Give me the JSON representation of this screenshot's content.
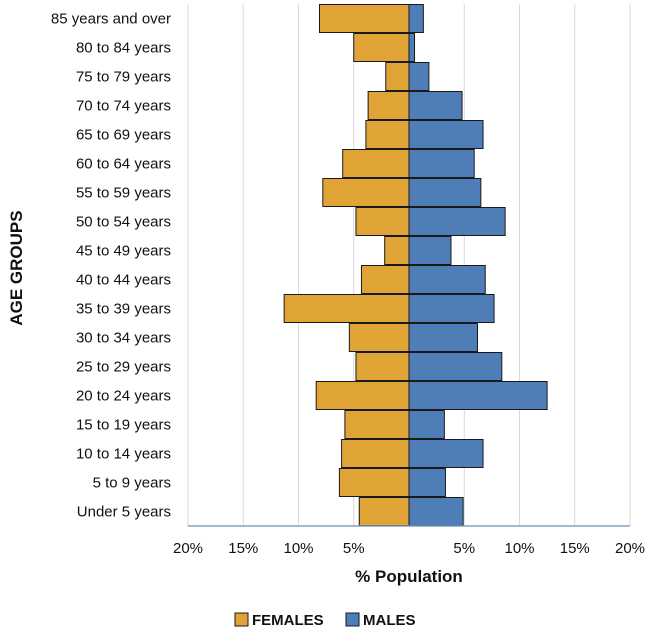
{
  "chart_data": {
    "type": "bar",
    "orientation": "horizontal-diverging",
    "title": "",
    "xlabel": "% Population",
    "ylabel": "AGE GROUPS",
    "categories": [
      "85 years and over",
      "80 to 84 years",
      "75 to 79 years",
      "70 to 74 years",
      "65 to 69 years",
      "60 to 64 years",
      "55 to 59 years",
      "50 to 54 years",
      "45 to 49 years",
      "40 to 44 years",
      "35 to 39 years",
      "30 to 34 years",
      "25 to 29 years",
      "20 to 24 years",
      "15 to 19 years",
      "10 to 14 years",
      "5 to 9 years",
      "Under 5 years"
    ],
    "series": [
      {
        "name": "FEMALES",
        "side": "left",
        "color": "#E0A335",
        "values": [
          8.1,
          5.0,
          2.1,
          3.7,
          3.9,
          6.0,
          7.8,
          4.8,
          2.2,
          4.3,
          11.3,
          5.4,
          4.8,
          8.4,
          5.8,
          6.1,
          6.3,
          4.5
        ]
      },
      {
        "name": "MALES",
        "side": "right",
        "color": "#4F7DB8",
        "values": [
          1.3,
          0.5,
          1.8,
          4.8,
          6.7,
          5.9,
          6.5,
          8.7,
          3.8,
          6.9,
          7.7,
          6.2,
          8.4,
          12.5,
          3.2,
          6.7,
          3.3,
          4.9
        ]
      }
    ],
    "xlim": [
      -20,
      20
    ],
    "xticks": [
      "20%",
      "15%",
      "10%",
      "5%",
      "5%",
      "10%",
      "15%",
      "20%"
    ],
    "xtick_values": [
      -20,
      -15,
      -10,
      -5,
      5,
      10,
      15,
      20
    ],
    "grid": true,
    "legend": "bottom-center"
  }
}
